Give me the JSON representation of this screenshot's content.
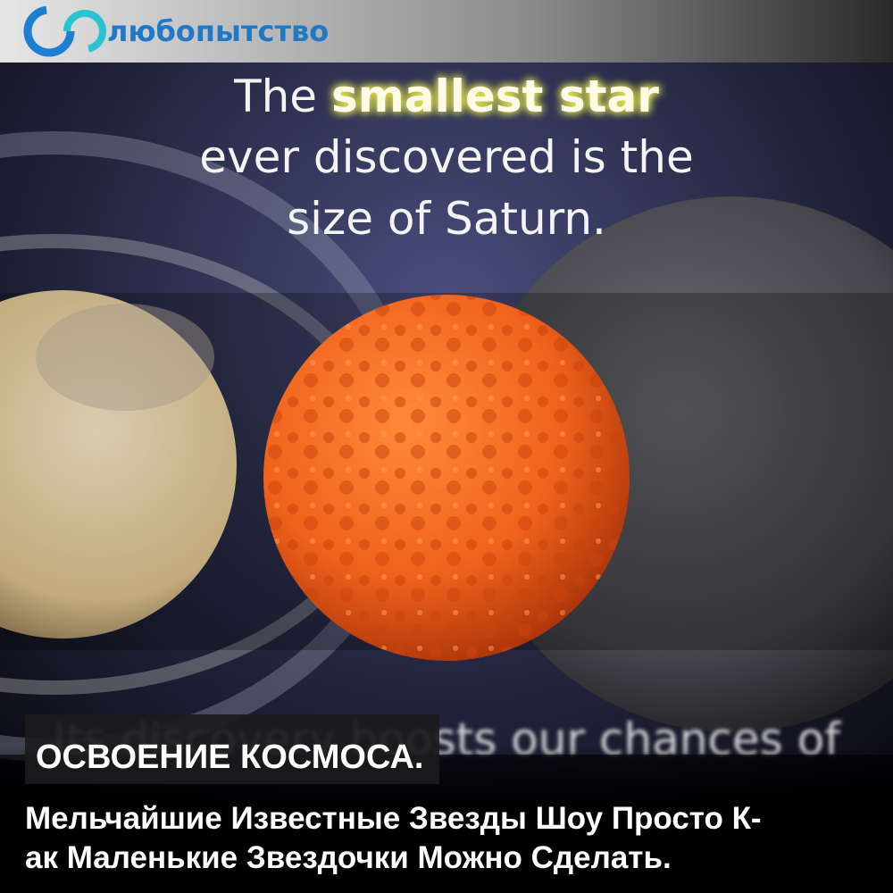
{
  "logo": {
    "text": "любопытство"
  },
  "headline": {
    "line1_prefix": "The",
    "line1_highlight": "smallest star",
    "line2": "ever discovered is the",
    "line3": "size of Saturn."
  },
  "subtitle_partial": "Its discovery boosts our chances of",
  "category": "ОСВОЕНИЕ КОСМОСА.",
  "caption": {
    "lines": [
      "Мельчайшие Известные Звезды Шоу Просто К-",
      "ак Маленькие Звездочки Можно Сделать."
    ]
  }
}
